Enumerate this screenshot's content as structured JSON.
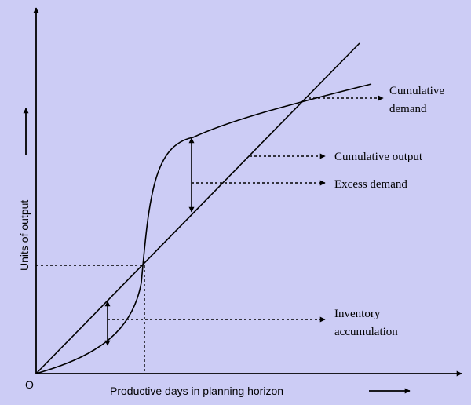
{
  "colors": {
    "background": "#ccccf5",
    "ink": "#000000"
  },
  "axes": {
    "origin_label": "O",
    "x_label": "Productive days in planning horizon",
    "y_label": "Units of output"
  },
  "annotations": {
    "cumulative_demand": [
      "Cumulative",
      "demand"
    ],
    "cumulative_output": "Cumulative output",
    "excess_demand": "Excess demand",
    "inventory_accumulation": [
      "Inventory",
      "accumulation"
    ]
  }
}
